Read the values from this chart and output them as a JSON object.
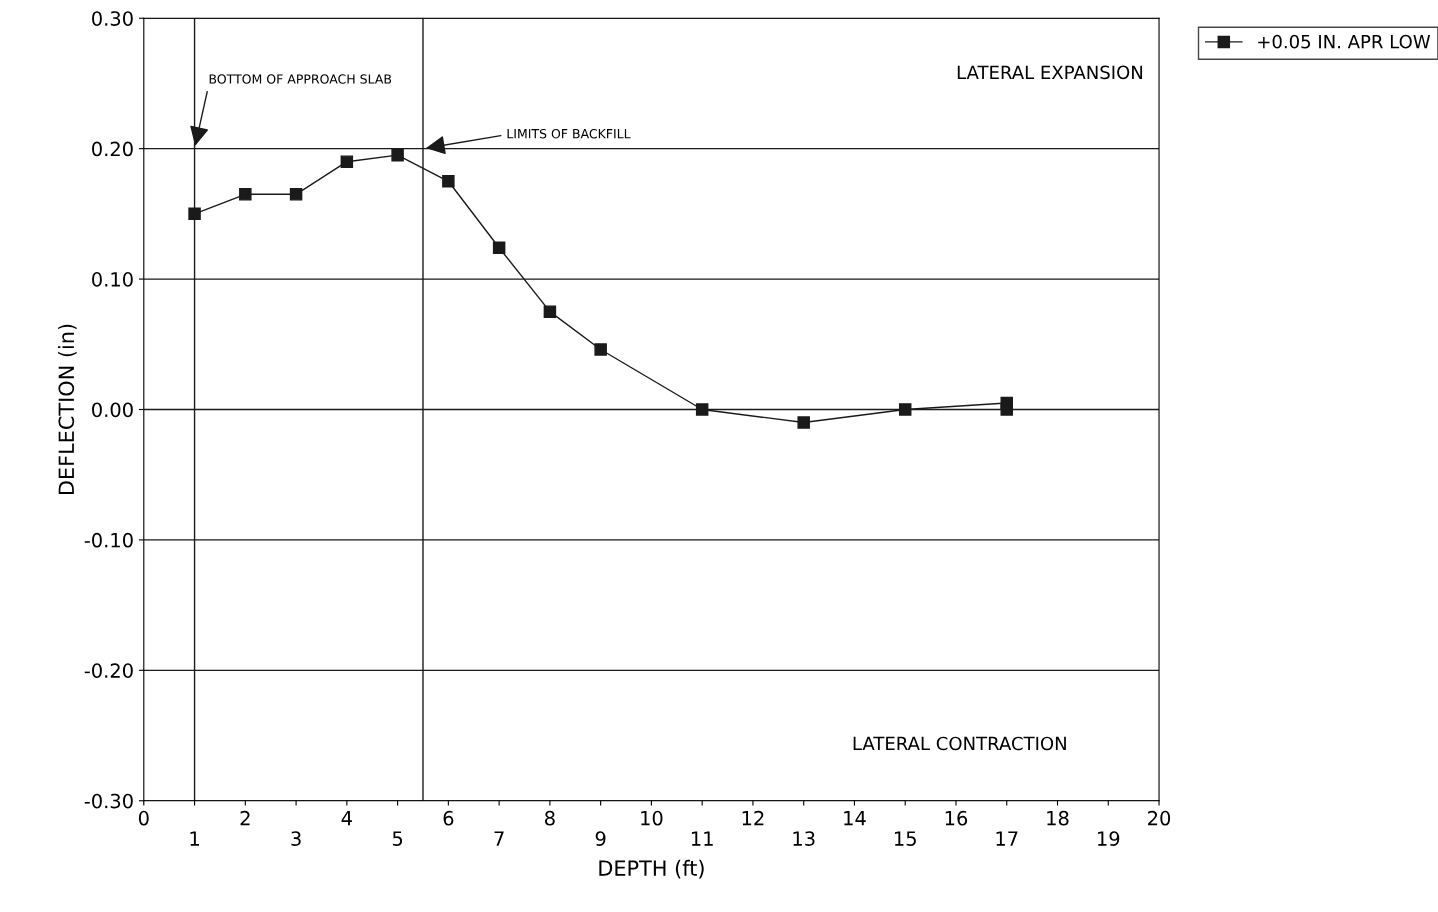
{
  "chart_data": {
    "type": "line",
    "xlabel": "DEPTH (ft)",
    "ylabel": "DEFLECTION (in)",
    "xlim": [
      0,
      20
    ],
    "xticks": [
      0,
      {
        "value": 1,
        "label": null
      },
      2,
      {
        "value": 3,
        "label": null
      },
      4,
      {
        "value": 5,
        "label": null
      },
      6,
      {
        "value": 7,
        "label": null
      },
      8,
      {
        "value": 9,
        "label": null
      },
      10,
      {
        "value": 11,
        "label": null
      },
      12,
      {
        "value": 13,
        "label": null
      },
      14,
      {
        "value": 15,
        "label": null
      },
      16,
      {
        "value": 17,
        "label": null
      },
      18,
      {
        "value": 19,
        "label": null
      },
      20
    ],
    "x2lim": [
      0,
      20
    ],
    "x2ticks": [
      1,
      3,
      5,
      7,
      9,
      11,
      13,
      15,
      17,
      19
    ],
    "ylim": [
      -0.3,
      0.3
    ],
    "yticks": [
      {
        "value": -0.3,
        "label": "-0.30"
      },
      {
        "value": -0.2,
        "label": "-0.20"
      },
      {
        "value": -0.1,
        "label": "-0.10"
      },
      {
        "value": 0,
        "label": "0.00"
      },
      {
        "value": 0.1,
        "label": "0.10"
      },
      {
        "value": 0.2,
        "label": "0.20"
      },
      {
        "value": 0.3,
        "label": "0.30"
      }
    ],
    "series": [
      {
        "name": "+0.05 IN. APR LOW",
        "color": "#1a1a1a",
        "x": [
          1,
          2,
          3,
          4,
          5,
          6,
          7,
          8,
          9,
          11,
          13,
          15,
          17,
          17
        ],
        "values": [
          0.15,
          0.165,
          0.165,
          0.19,
          0.195,
          0.175,
          0.124,
          0.075,
          0.046,
          0.0,
          -0.01,
          0.0,
          0.005,
          0.0
        ]
      }
    ],
    "ref_lines": [
      {
        "axis": "x",
        "value": 1,
        "color": "#1a1a1a"
      },
      {
        "axis": "x",
        "value": 5.5,
        "color": "#1a1a1a"
      }
    ],
    "annotations": [
      {
        "text": "BOTTOM OF APPROACH SLAB",
        "x": 1,
        "y": 0.2
      },
      {
        "text": "LIMITS OF BACKFILL",
        "x": 5.5,
        "y": 0.2
      },
      "LATERAL EXPANSION",
      "LATERAL CONTRACTION"
    ],
    "grid": "y",
    "legend": "top right",
    "marker": "square",
    "line_style": "solid"
  }
}
